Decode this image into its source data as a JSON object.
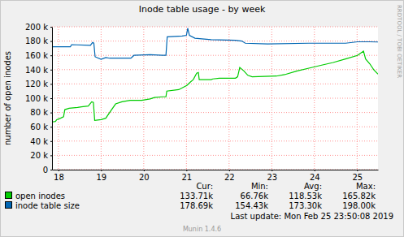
{
  "chart_data": {
    "type": "line",
    "title": "Inode table usage - by week",
    "y_label": "number of open inodes",
    "side_text": "RRDTOOL / TOBI OETIKER",
    "grid": true,
    "legend": "bottom",
    "xlim": [
      18.35,
      25.99
    ],
    "xticks": [
      {
        "value": 18.5,
        "label": "18"
      },
      {
        "value": 19.5,
        "label": "19"
      },
      {
        "value": 20.5,
        "label": "20"
      },
      {
        "value": 21.5,
        "label": "21"
      },
      {
        "value": 22.5,
        "label": "22"
      },
      {
        "value": 23.5,
        "label": "23"
      },
      {
        "value": 24.5,
        "label": "24"
      },
      {
        "value": 25.5,
        "label": "25"
      }
    ],
    "ylim": [
      0,
      200000
    ],
    "yticks": [
      0,
      {
        "value": 20000,
        "label": "20 k"
      },
      {
        "value": 40000,
        "label": "40 k"
      },
      {
        "value": 60000,
        "label": "60 k"
      },
      {
        "value": 80000,
        "label": "80 k"
      },
      {
        "value": 100000,
        "label": "100 k"
      },
      {
        "value": 120000,
        "label": "120 k"
      },
      {
        "value": 140000,
        "label": "140 k"
      },
      {
        "value": 160000,
        "label": "160 k"
      },
      {
        "value": 180000,
        "label": "180 k"
      },
      {
        "value": 200000,
        "label": "200 k"
      }
    ],
    "legend_headers": [
      "Cur:",
      "Min:",
      "Avg:",
      "Max:"
    ],
    "series": [
      {
        "name": "open inodes",
        "color": "#00cc00",
        "x": [
          18.35,
          18.43,
          18.46,
          18.55,
          18.62,
          18.65,
          18.75,
          18.95,
          19.04,
          19.2,
          19.28,
          19.32,
          19.35,
          19.5,
          19.61,
          19.7,
          19.84,
          19.99,
          20.18,
          20.45,
          20.65,
          20.75,
          20.94,
          21.02,
          21.04,
          21.32,
          21.51,
          21.6,
          21.66,
          21.74,
          21.78,
          21.8,
          22.08,
          22.12,
          22.27,
          22.65,
          22.7,
          22.75,
          22.85,
          22.94,
          23.04,
          23.61,
          23.8,
          24.08,
          24.37,
          24.65,
          24.94,
          25.23,
          25.51,
          25.65,
          25.7,
          25.8,
          25.89,
          25.99
        ],
        "values": [
          66760,
          67500,
          70000,
          72000,
          74000,
          84000,
          86000,
          87000,
          88000,
          89000,
          95000,
          94000,
          69000,
          70000,
          72000,
          80000,
          92000,
          95000,
          97000,
          97000,
          99000,
          101000,
          102000,
          102000,
          110000,
          112000,
          118000,
          123000,
          126000,
          135000,
          136000,
          126000,
          126000,
          127000,
          128000,
          128000,
          130000,
          143000,
          138000,
          132000,
          130000,
          131000,
          133000,
          138000,
          142000,
          146000,
          150000,
          155000,
          160000,
          165820,
          155000,
          148000,
          140000,
          133710
        ],
        "stats": [
          {
            "value": 133710,
            "label": "133.71k"
          },
          {
            "value": 66760,
            "label": "66.76k"
          },
          {
            "value": 118530,
            "label": "118.53k"
          },
          {
            "value": 165820,
            "label": "165.82k"
          }
        ]
      },
      {
        "name": "inode table size",
        "color": "#0066b3",
        "x": [
          18.35,
          18.78,
          18.81,
          19.25,
          19.3,
          19.33,
          19.36,
          19.5,
          19.61,
          19.7,
          20.2,
          20.27,
          20.65,
          20.94,
          21.02,
          21.05,
          21.4,
          21.5,
          21.53,
          21.57,
          21.7,
          22.08,
          22.65,
          22.8,
          22.88,
          23.4,
          24.37,
          25.23,
          25.51,
          25.8,
          25.99
        ],
        "values": [
          172000,
          172000,
          175000,
          174000,
          178000,
          177000,
          158000,
          154430,
          157000,
          156000,
          156000,
          160000,
          161000,
          160000,
          160000,
          186000,
          187000,
          188000,
          198000,
          188000,
          184000,
          182000,
          181000,
          180000,
          177000,
          176000,
          177000,
          177000,
          179000,
          179000,
          178690
        ],
        "stats": [
          {
            "value": 178690,
            "label": "178.69k"
          },
          {
            "value": 154430,
            "label": "154.43k"
          },
          {
            "value": 173300,
            "label": "173.30k"
          },
          {
            "value": 198000,
            "label": "198.00k"
          }
        ]
      }
    ],
    "last_update": "Last update: Mon Feb 25 23:50:08 2019",
    "footer": "Munin 1.4.6"
  }
}
